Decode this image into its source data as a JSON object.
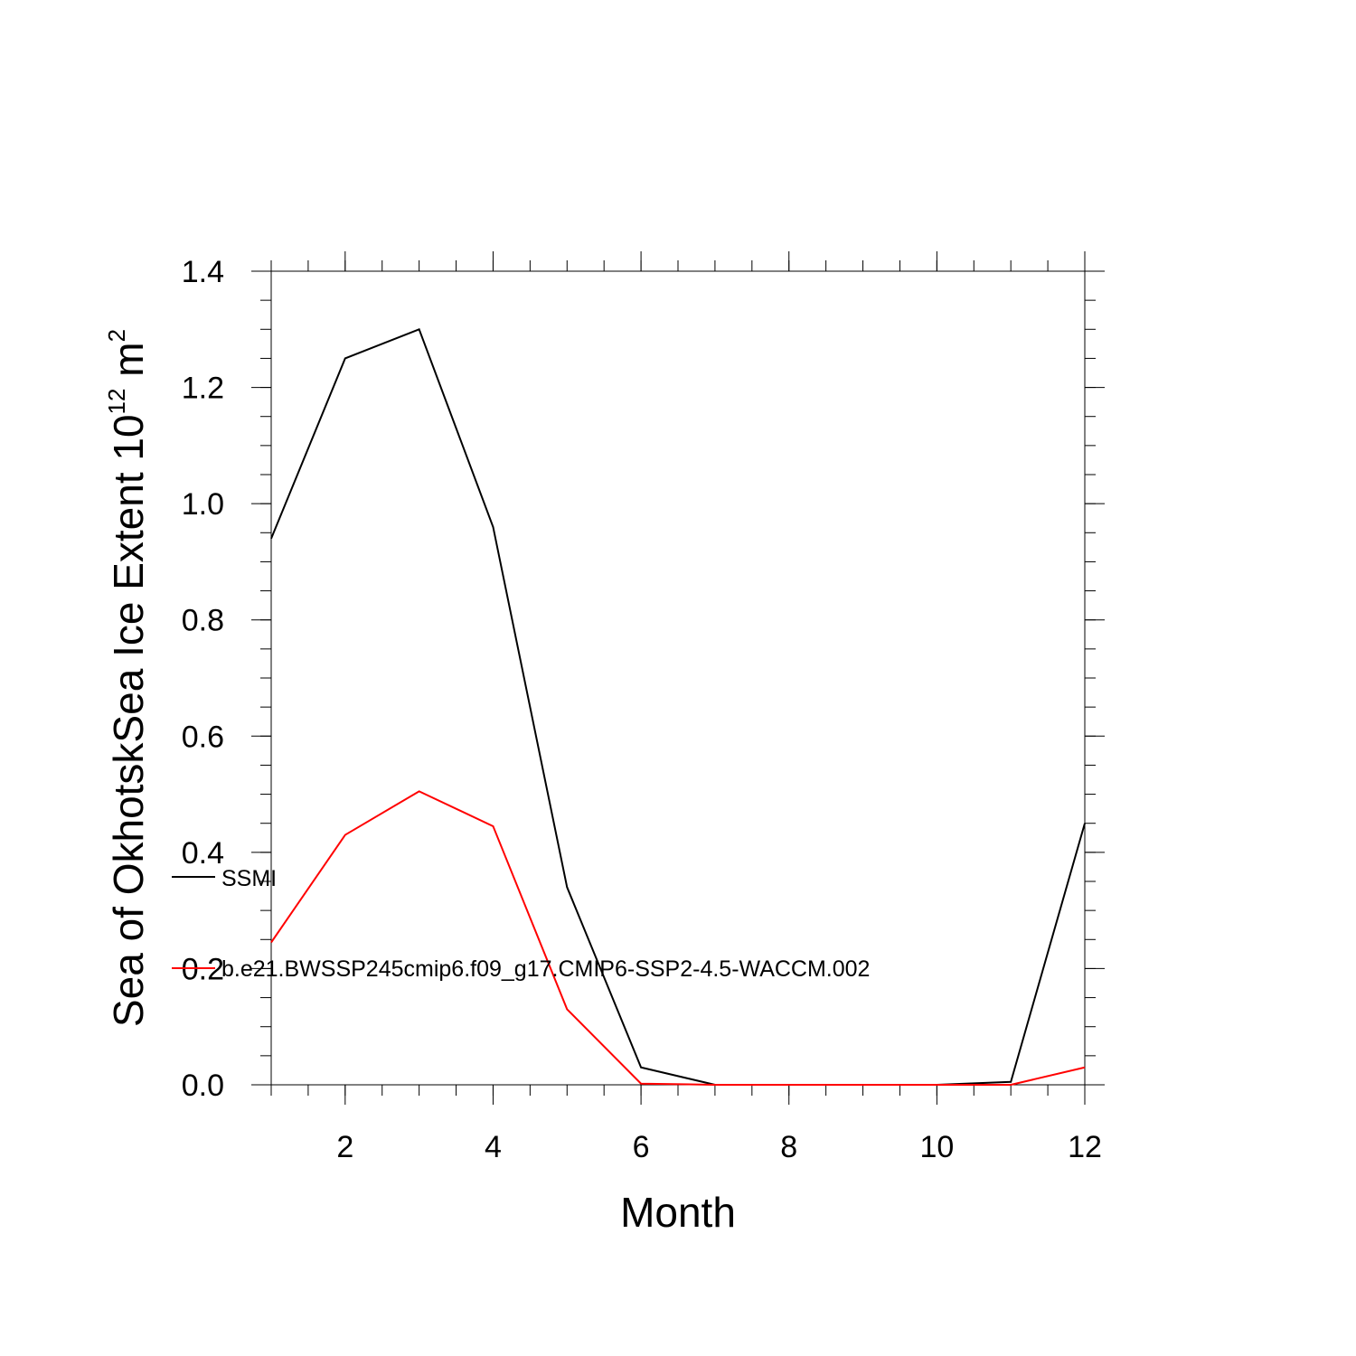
{
  "chart_data": {
    "type": "line",
    "xlabel": "Month",
    "ylabel": {
      "main": "Sea of OkhotskSea Ice Extent 10",
      "superscript": "12",
      "unit": " m",
      "unit_superscript": "2"
    },
    "xlim": [
      1,
      12
    ],
    "ylim": [
      0,
      1.4
    ],
    "x_ticks": [
      "2",
      "4",
      "6",
      "8",
      "10",
      "12"
    ],
    "y_ticks": [
      "0.0",
      "0.2",
      "0.4",
      "0.6",
      "0.8",
      "1.0",
      "1.2",
      "1.4"
    ],
    "x": [
      1,
      2,
      3,
      4,
      5,
      6,
      7,
      8,
      9,
      10,
      11,
      12
    ],
    "grid": false,
    "legend_position": "left inside plot",
    "series": [
      {
        "name": "SSMI",
        "color": "#000000",
        "values": [
          0.94,
          1.25,
          1.3,
          0.96,
          0.34,
          0.03,
          0.0,
          0.0,
          0.0,
          0.0,
          0.005,
          0.45
        ]
      },
      {
        "name": "b.e21.BWSSP245cmip6.f09_g17.CMIP6-SSP2-4.5-WACCM.002",
        "color": "#ff0000",
        "values": [
          0.245,
          0.43,
          0.505,
          0.445,
          0.13,
          0.002,
          0.0,
          0.0,
          0.0,
          0.0,
          0.0,
          0.03
        ]
      }
    ]
  }
}
